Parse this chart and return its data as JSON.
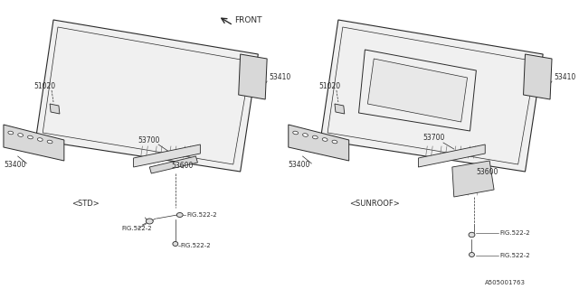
{
  "bg_color": "#ffffff",
  "line_color": "#2a2a2a",
  "fill_roof": "#f0f0f0",
  "fill_rail": "#d8d8d8",
  "fill_crossmember": "#e0e0e0",
  "std_label": "<STD>",
  "sunroof_label": "<SUNROOF>",
  "diagram_id": "A505001763",
  "fs": 5.5,
  "fs_small": 5.0,
  "front_text": "FRONT"
}
